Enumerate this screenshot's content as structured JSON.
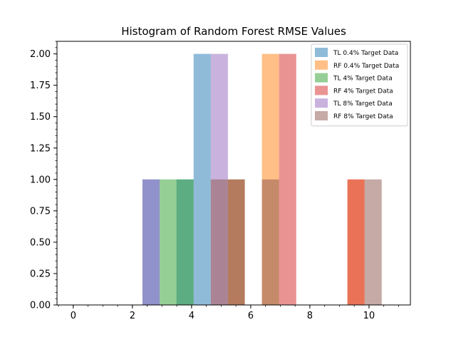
{
  "chart_data": {
    "type": "bar",
    "title": "Histogram of Random Forest RMSE Values",
    "xlabel": "",
    "ylabel": "",
    "xlim": [
      -0.55,
      11.4
    ],
    "ylim": [
      0,
      2.1
    ],
    "xticks": [
      0,
      2,
      4,
      6,
      8,
      10
    ],
    "xtick_labels": [
      "0",
      "2",
      "4",
      "6",
      "8",
      "10"
    ],
    "xminor_step": 0.5,
    "yticks": [
      0,
      0.25,
      0.5,
      0.75,
      1.0,
      1.25,
      1.5,
      1.75,
      2.0
    ],
    "ytick_labels": [
      "0.00",
      "0.25",
      "0.50",
      "0.75",
      "1.00",
      "1.25",
      "1.50",
      "1.75",
      "2.00"
    ],
    "yminor_step": 0.05,
    "bar_alpha": 0.5,
    "grid": false,
    "legend_position": "top-right",
    "series": [
      {
        "name": "TL 0.4% Target Data",
        "color": "#1f77b4",
        "bars": [
          {
            "x0": 2.34,
            "x1": 2.92,
            "count": 1
          },
          {
            "x0": 3.49,
            "x1": 4.07,
            "count": 1
          },
          {
            "x0": 4.07,
            "x1": 4.65,
            "count": 2
          }
        ]
      },
      {
        "name": "RF 0.4% Target Data",
        "color": "#ff7f0e",
        "bars": [
          {
            "x0": 6.38,
            "x1": 6.96,
            "count": 2
          },
          {
            "x0": 9.27,
            "x1": 9.85,
            "count": 1
          }
        ]
      },
      {
        "name": "TL 4% Target Data",
        "color": "#2ca02c",
        "bars": [
          {
            "x0": 2.92,
            "x1": 3.49,
            "count": 1
          },
          {
            "x0": 3.49,
            "x1": 4.07,
            "count": 1
          },
          {
            "x0": 5.23,
            "x1": 5.8,
            "count": 1
          }
        ]
      },
      {
        "name": "RF 4% Target Data",
        "color": "#d62728",
        "bars": [
          {
            "x0": 5.23,
            "x1": 5.8,
            "count": 1
          },
          {
            "x0": 6.96,
            "x1": 7.54,
            "count": 2
          },
          {
            "x0": 9.27,
            "x1": 9.85,
            "count": 1
          }
        ]
      },
      {
        "name": "TL 8% Target Data",
        "color": "#9467bd",
        "bars": [
          {
            "x0": 2.34,
            "x1": 2.92,
            "count": 1
          },
          {
            "x0": 4.65,
            "x1": 5.23,
            "count": 2
          }
        ]
      },
      {
        "name": "RF 8% Target Data",
        "color": "#8c564b",
        "bars": [
          {
            "x0": 4.65,
            "x1": 5.23,
            "count": 1
          },
          {
            "x0": 6.38,
            "x1": 6.96,
            "count": 1
          },
          {
            "x0": 9.85,
            "x1": 10.43,
            "count": 1
          }
        ]
      }
    ]
  }
}
